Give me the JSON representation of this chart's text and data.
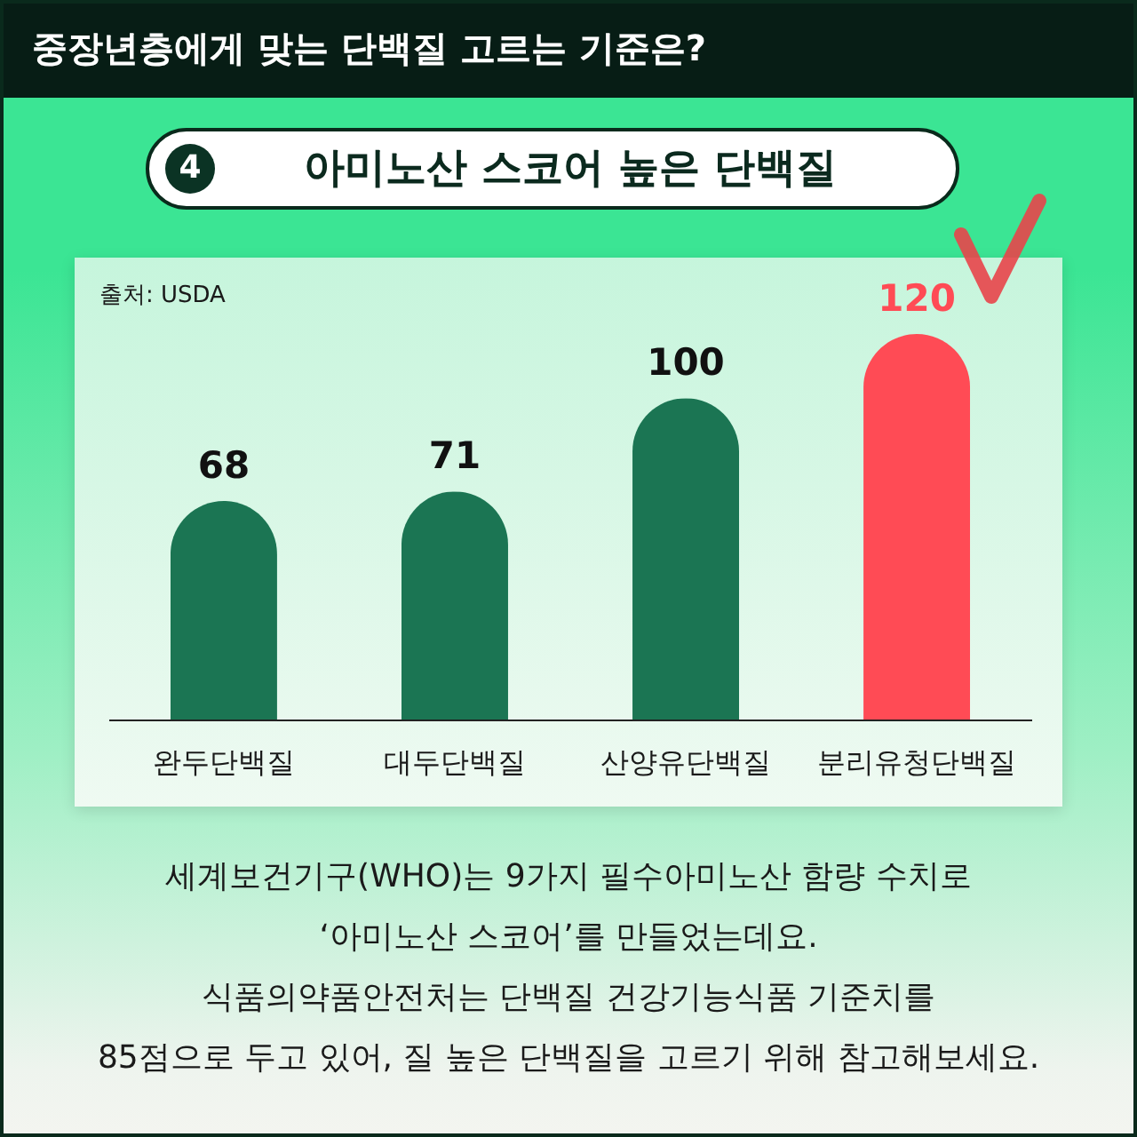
{
  "chart_data": {
    "type": "bar",
    "title": "중장년층에게 맞는 단백질 고르는 기준은?",
    "subtitle": "4 아미노산 스코어 높은 단백질",
    "categories": [
      "완두단백질",
      "대두단백질",
      "산양유단백질",
      "분리유청단백질"
    ],
    "values": [
      68,
      71,
      100,
      120
    ],
    "colors": [
      "#1b7553",
      "#1b7553",
      "#1b7553",
      "#ff4b55"
    ],
    "data_labels": true,
    "annotations": [
      "출처: USDA",
      "세계보건기구(WHO)는 9가지 필수아미노산 함량 수치로\n‘아미노산 스코어’를 만들었는데요.\n식품의약품안전처는 단백질 건강기능식품 기준치를\n85점으로 두고 있어, 질 높은 단백질을 고르기 위해 참고해보세요."
    ]
  }
}
